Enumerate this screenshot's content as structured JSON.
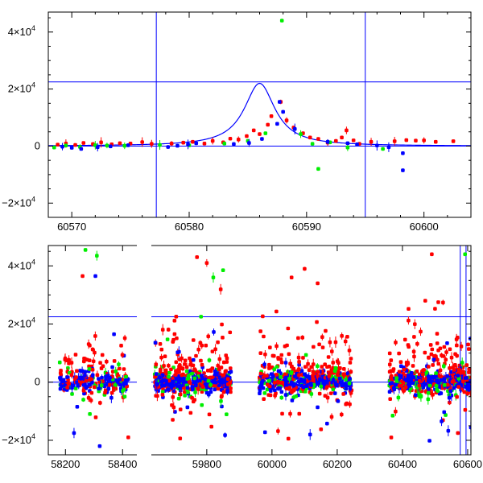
{
  "colors": {
    "frame": "#000000",
    "model": "#0000ff",
    "red": "#ff0000",
    "green": "#00ee00",
    "blue": "#0000ff"
  },
  "chart_data": [
    {
      "type": "scatter",
      "panel": "top",
      "xlim": [
        60568,
        60604
      ],
      "ylim": [
        -25000,
        47000
      ],
      "x_ticks": [
        60570,
        60580,
        60590,
        60600
      ],
      "x_tick_labels": [
        "60570",
        "60580",
        "60590",
        "60600"
      ],
      "y_ticks": [
        -20000,
        0,
        20000,
        40000
      ],
      "y_tick_labels": [
        {
          "m": "−2×10",
          "e": "4"
        },
        {
          "m": "0",
          "e": ""
        },
        {
          "m": "2×10",
          "e": "4"
        },
        {
          "m": "4×10",
          "e": "4"
        }
      ],
      "hlines": [
        0,
        22500
      ],
      "vlines": [
        60577.2,
        60595
      ],
      "model_curve": {
        "t0": 60586.0,
        "peak": 22000,
        "base": 0,
        "width": 1.6
      },
      "series": [
        {
          "color": "red",
          "points": [
            [
              60568.8,
              500
            ],
            [
              60569.5,
              900
            ],
            [
              60570.3,
              400
            ],
            [
              60571.0,
              1100
            ],
            [
              60571.8,
              700
            ],
            [
              60572.5,
              1300
            ],
            [
              60573.4,
              600
            ],
            [
              60574.1,
              1000
            ],
            [
              60575.0,
              900
            ],
            [
              60576.0,
              1400
            ],
            [
              60576.8,
              800
            ],
            [
              60578.5,
              900
            ],
            [
              60579.5,
              1200
            ],
            [
              60580.3,
              1500
            ],
            [
              60581.3,
              900
            ],
            [
              60582.0,
              1800
            ],
            [
              60582.9,
              1300
            ],
            [
              60583.5,
              2600
            ],
            [
              60584.2,
              2300
            ],
            [
              60584.9,
              3500
            ],
            [
              60585.5,
              5500
            ],
            [
              60586.0,
              4200
            ],
            [
              60586.7,
              7500
            ],
            [
              60587.0,
              10500
            ],
            [
              60587.8,
              15500
            ],
            [
              60588.3,
              9000
            ],
            [
              60588.9,
              6500
            ],
            [
              60589.7,
              4500
            ],
            [
              60590.3,
              3000
            ],
            [
              60591.0,
              2500
            ],
            [
              60591.8,
              1200
            ],
            [
              60592.5,
              1800
            ],
            [
              60593.0,
              3000
            ],
            [
              60593.4,
              5500
            ],
            [
              60594.0,
              2000
            ],
            [
              60594.5,
              800
            ],
            [
              60595.5,
              1500
            ],
            [
              60597.5,
              1700
            ],
            [
              60598.5,
              2100
            ],
            [
              60599.3,
              1900
            ],
            [
              60600.0,
              2000
            ],
            [
              60601.0,
              1500
            ],
            [
              60602.5,
              1700
            ]
          ]
        },
        {
          "color": "green",
          "points": [
            [
              60568.5,
              -500
            ],
            [
              60569.5,
              200
            ],
            [
              60570.7,
              -300
            ],
            [
              60572.0,
              300
            ],
            [
              60573.0,
              200
            ],
            [
              60574.5,
              100
            ],
            [
              60577.5,
              400
            ],
            [
              60580.0,
              300
            ],
            [
              60583.0,
              900
            ],
            [
              60585.0,
              1800
            ],
            [
              60586.5,
              4500
            ],
            [
              60587.9,
              44000
            ],
            [
              60589.5,
              4200
            ],
            [
              60590.5,
              800
            ],
            [
              60591.0,
              -8000
            ],
            [
              60592.0,
              1300
            ],
            [
              60593.5,
              -500
            ],
            [
              60596.5,
              -1000
            ]
          ]
        },
        {
          "color": "blue",
          "points": [
            [
              60569.2,
              -200
            ],
            [
              60570.0,
              -600
            ],
            [
              60570.8,
              -1000
            ],
            [
              60572.2,
              -400
            ],
            [
              60573.3,
              -100
            ],
            [
              60574.8,
              300
            ],
            [
              60578.2,
              -300
            ],
            [
              60579.0,
              100
            ],
            [
              60579.9,
              600
            ],
            [
              60580.6,
              1000
            ],
            [
              60583.8,
              700
            ],
            [
              60585.1,
              1100
            ],
            [
              60586.2,
              2500
            ],
            [
              60587.5,
              7800
            ],
            [
              60587.7,
              15500
            ],
            [
              60588.0,
              12000
            ],
            [
              60589.0,
              6000
            ],
            [
              60591.8,
              1500
            ],
            [
              60593.5,
              1000
            ],
            [
              60594.3,
              600
            ],
            [
              60596.0,
              200
            ],
            [
              60597.0,
              -400
            ],
            [
              60598.2,
              -2500
            ],
            [
              60598.2,
              -8500
            ]
          ]
        }
      ]
    },
    {
      "type": "scatter",
      "panel": "bottom",
      "x_ticks": [
        58200,
        58400,
        59800,
        60000,
        60200,
        60400,
        60600
      ],
      "x_tick_labels": [
        "58200",
        "58400",
        "59800",
        "60000",
        "60200",
        "60400",
        "60600"
      ],
      "x_axis_note": "broken axis: segment 1 ≈ 58140–58450, segment 2 ≈ 59630–60610",
      "ylim": [
        -25000,
        47000
      ],
      "y_ticks": [
        -20000,
        0,
        20000,
        40000
      ],
      "y_tick_labels": [
        {
          "m": "−2×10",
          "e": "4"
        },
        {
          "m": "0",
          "e": ""
        },
        {
          "m": "2×10",
          "e": "4"
        },
        {
          "m": "4×10",
          "e": "4"
        }
      ],
      "hlines": [
        0,
        22500
      ],
      "vlines": [
        60577.2,
        60595
      ],
      "seasons": [
        {
          "range": [
            58180,
            58420
          ],
          "scatter_spread": 6000
        },
        {
          "range": [
            59640,
            59875
          ],
          "scatter_spread": 9000
        },
        {
          "range": [
            59960,
            60245
          ],
          "scatter_spread": 9000
        },
        {
          "range": [
            60360,
            60610
          ],
          "scatter_spread": 9000
        }
      ],
      "notable_points": [
        {
          "color": "green",
          "x": 58270,
          "y": 45500
        },
        {
          "color": "green",
          "x": 58310,
          "y": 43500
        },
        {
          "color": "red",
          "x": 58260,
          "y": 36500
        },
        {
          "color": "blue",
          "x": 58305,
          "y": 36500
        },
        {
          "color": "blue",
          "x": 58370,
          "y": 16500
        },
        {
          "color": "blue",
          "x": 58320,
          "y": -22000
        },
        {
          "color": "blue",
          "x": 58230,
          "y": -17500
        },
        {
          "color": "red",
          "x": 58420,
          "y": -19000
        },
        {
          "color": "red",
          "x": 59770,
          "y": 43000
        },
        {
          "color": "red",
          "x": 59800,
          "y": 41000
        },
        {
          "color": "green",
          "x": 59820,
          "y": 36000
        },
        {
          "color": "green",
          "x": 59850,
          "y": 38500
        },
        {
          "color": "red",
          "x": 60100,
          "y": 39000
        },
        {
          "color": "red",
          "x": 60060,
          "y": 36000
        },
        {
          "color": "red",
          "x": 60140,
          "y": 34000
        },
        {
          "color": "red",
          "x": 60490,
          "y": 44000
        },
        {
          "color": "red",
          "x": 60470,
          "y": 28000
        },
        {
          "color": "red",
          "x": 60510,
          "y": 27500
        },
        {
          "color": "green",
          "x": 60592,
          "y": 44000
        },
        {
          "color": "red",
          "x": 60570,
          "y": -17500
        },
        {
          "color": "blue",
          "x": 60520,
          "y": -13500
        }
      ]
    }
  ]
}
